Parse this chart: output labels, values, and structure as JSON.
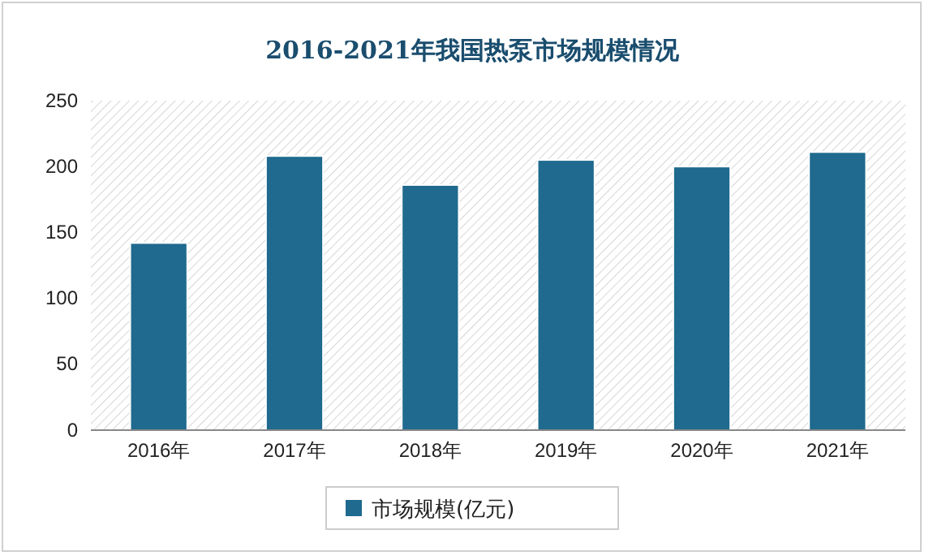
{
  "chart_data": {
    "type": "bar",
    "title": "2016-2021年我国热泵市场规模情况",
    "categories": [
      "2016年",
      "2017年",
      "2018年",
      "2019年",
      "2020年",
      "2021年"
    ],
    "series": [
      {
        "name": "市场规模(亿元)",
        "color": "#1f6a8e",
        "values": [
          142,
          208,
          186,
          205,
          200,
          211
        ]
      }
    ],
    "ylim": [
      0,
      250
    ],
    "yticks": [
      0,
      50,
      100,
      150,
      200,
      250
    ],
    "grid": false,
    "legend": "bottom"
  }
}
